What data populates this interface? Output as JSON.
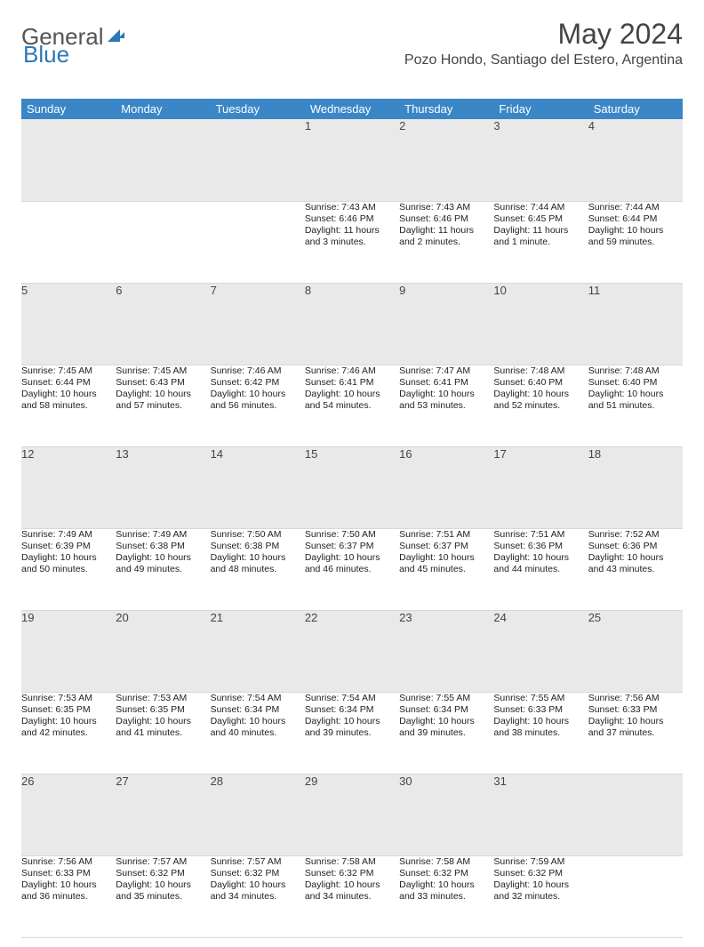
{
  "header": {
    "logo_general": "General",
    "logo_blue": "Blue",
    "month_title": "May 2024",
    "location": "Pozo Hondo, Santiago del Estero, Argentina"
  },
  "colors": {
    "header_bg": "#3b86c6",
    "header_text": "#ffffff",
    "daynum_bg": "#e9e9e9",
    "row_divider": "#3b86c6",
    "text": "#222222",
    "page_bg": "#ffffff"
  },
  "weekdays": [
    "Sunday",
    "Monday",
    "Tuesday",
    "Wednesday",
    "Thursday",
    "Friday",
    "Saturday"
  ],
  "weeks": [
    {
      "nums": [
        "",
        "",
        "",
        "1",
        "2",
        "3",
        "4"
      ],
      "cells": [
        null,
        null,
        null,
        {
          "sunrise": "Sunrise: 7:43 AM",
          "sunset": "Sunset: 6:46 PM",
          "daylight1": "Daylight: 11 hours",
          "daylight2": "and 3 minutes."
        },
        {
          "sunrise": "Sunrise: 7:43 AM",
          "sunset": "Sunset: 6:46 PM",
          "daylight1": "Daylight: 11 hours",
          "daylight2": "and 2 minutes."
        },
        {
          "sunrise": "Sunrise: 7:44 AM",
          "sunset": "Sunset: 6:45 PM",
          "daylight1": "Daylight: 11 hours",
          "daylight2": "and 1 minute."
        },
        {
          "sunrise": "Sunrise: 7:44 AM",
          "sunset": "Sunset: 6:44 PM",
          "daylight1": "Daylight: 10 hours",
          "daylight2": "and 59 minutes."
        }
      ]
    },
    {
      "nums": [
        "5",
        "6",
        "7",
        "8",
        "9",
        "10",
        "11"
      ],
      "cells": [
        {
          "sunrise": "Sunrise: 7:45 AM",
          "sunset": "Sunset: 6:44 PM",
          "daylight1": "Daylight: 10 hours",
          "daylight2": "and 58 minutes."
        },
        {
          "sunrise": "Sunrise: 7:45 AM",
          "sunset": "Sunset: 6:43 PM",
          "daylight1": "Daylight: 10 hours",
          "daylight2": "and 57 minutes."
        },
        {
          "sunrise": "Sunrise: 7:46 AM",
          "sunset": "Sunset: 6:42 PM",
          "daylight1": "Daylight: 10 hours",
          "daylight2": "and 56 minutes."
        },
        {
          "sunrise": "Sunrise: 7:46 AM",
          "sunset": "Sunset: 6:41 PM",
          "daylight1": "Daylight: 10 hours",
          "daylight2": "and 54 minutes."
        },
        {
          "sunrise": "Sunrise: 7:47 AM",
          "sunset": "Sunset: 6:41 PM",
          "daylight1": "Daylight: 10 hours",
          "daylight2": "and 53 minutes."
        },
        {
          "sunrise": "Sunrise: 7:48 AM",
          "sunset": "Sunset: 6:40 PM",
          "daylight1": "Daylight: 10 hours",
          "daylight2": "and 52 minutes."
        },
        {
          "sunrise": "Sunrise: 7:48 AM",
          "sunset": "Sunset: 6:40 PM",
          "daylight1": "Daylight: 10 hours",
          "daylight2": "and 51 minutes."
        }
      ]
    },
    {
      "nums": [
        "12",
        "13",
        "14",
        "15",
        "16",
        "17",
        "18"
      ],
      "cells": [
        {
          "sunrise": "Sunrise: 7:49 AM",
          "sunset": "Sunset: 6:39 PM",
          "daylight1": "Daylight: 10 hours",
          "daylight2": "and 50 minutes."
        },
        {
          "sunrise": "Sunrise: 7:49 AM",
          "sunset": "Sunset: 6:38 PM",
          "daylight1": "Daylight: 10 hours",
          "daylight2": "and 49 minutes."
        },
        {
          "sunrise": "Sunrise: 7:50 AM",
          "sunset": "Sunset: 6:38 PM",
          "daylight1": "Daylight: 10 hours",
          "daylight2": "and 48 minutes."
        },
        {
          "sunrise": "Sunrise: 7:50 AM",
          "sunset": "Sunset: 6:37 PM",
          "daylight1": "Daylight: 10 hours",
          "daylight2": "and 46 minutes."
        },
        {
          "sunrise": "Sunrise: 7:51 AM",
          "sunset": "Sunset: 6:37 PM",
          "daylight1": "Daylight: 10 hours",
          "daylight2": "and 45 minutes."
        },
        {
          "sunrise": "Sunrise: 7:51 AM",
          "sunset": "Sunset: 6:36 PM",
          "daylight1": "Daylight: 10 hours",
          "daylight2": "and 44 minutes."
        },
        {
          "sunrise": "Sunrise: 7:52 AM",
          "sunset": "Sunset: 6:36 PM",
          "daylight1": "Daylight: 10 hours",
          "daylight2": "and 43 minutes."
        }
      ]
    },
    {
      "nums": [
        "19",
        "20",
        "21",
        "22",
        "23",
        "24",
        "25"
      ],
      "cells": [
        {
          "sunrise": "Sunrise: 7:53 AM",
          "sunset": "Sunset: 6:35 PM",
          "daylight1": "Daylight: 10 hours",
          "daylight2": "and 42 minutes."
        },
        {
          "sunrise": "Sunrise: 7:53 AM",
          "sunset": "Sunset: 6:35 PM",
          "daylight1": "Daylight: 10 hours",
          "daylight2": "and 41 minutes."
        },
        {
          "sunrise": "Sunrise: 7:54 AM",
          "sunset": "Sunset: 6:34 PM",
          "daylight1": "Daylight: 10 hours",
          "daylight2": "and 40 minutes."
        },
        {
          "sunrise": "Sunrise: 7:54 AM",
          "sunset": "Sunset: 6:34 PM",
          "daylight1": "Daylight: 10 hours",
          "daylight2": "and 39 minutes."
        },
        {
          "sunrise": "Sunrise: 7:55 AM",
          "sunset": "Sunset: 6:34 PM",
          "daylight1": "Daylight: 10 hours",
          "daylight2": "and 39 minutes."
        },
        {
          "sunrise": "Sunrise: 7:55 AM",
          "sunset": "Sunset: 6:33 PM",
          "daylight1": "Daylight: 10 hours",
          "daylight2": "and 38 minutes."
        },
        {
          "sunrise": "Sunrise: 7:56 AM",
          "sunset": "Sunset: 6:33 PM",
          "daylight1": "Daylight: 10 hours",
          "daylight2": "and 37 minutes."
        }
      ]
    },
    {
      "nums": [
        "26",
        "27",
        "28",
        "29",
        "30",
        "31",
        ""
      ],
      "cells": [
        {
          "sunrise": "Sunrise: 7:56 AM",
          "sunset": "Sunset: 6:33 PM",
          "daylight1": "Daylight: 10 hours",
          "daylight2": "and 36 minutes."
        },
        {
          "sunrise": "Sunrise: 7:57 AM",
          "sunset": "Sunset: 6:32 PM",
          "daylight1": "Daylight: 10 hours",
          "daylight2": "and 35 minutes."
        },
        {
          "sunrise": "Sunrise: 7:57 AM",
          "sunset": "Sunset: 6:32 PM",
          "daylight1": "Daylight: 10 hours",
          "daylight2": "and 34 minutes."
        },
        {
          "sunrise": "Sunrise: 7:58 AM",
          "sunset": "Sunset: 6:32 PM",
          "daylight1": "Daylight: 10 hours",
          "daylight2": "and 34 minutes."
        },
        {
          "sunrise": "Sunrise: 7:58 AM",
          "sunset": "Sunset: 6:32 PM",
          "daylight1": "Daylight: 10 hours",
          "daylight2": "and 33 minutes."
        },
        {
          "sunrise": "Sunrise: 7:59 AM",
          "sunset": "Sunset: 6:32 PM",
          "daylight1": "Daylight: 10 hours",
          "daylight2": "and 32 minutes."
        },
        null
      ]
    }
  ]
}
